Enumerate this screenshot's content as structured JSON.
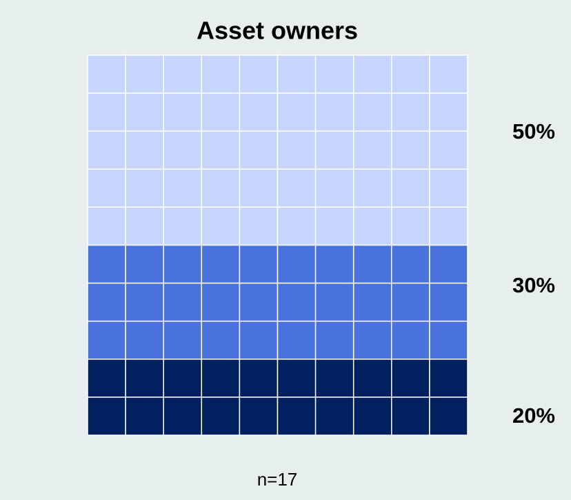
{
  "chart_data": {
    "type": "waffle",
    "title": "Asset owners",
    "values": [
      50,
      30,
      20
    ],
    "value_labels": [
      "50%",
      "30%",
      "20%"
    ],
    "colors": [
      "#c5d5fb",
      "#4a72dc",
      "#002060"
    ],
    "note": "n=17"
  }
}
